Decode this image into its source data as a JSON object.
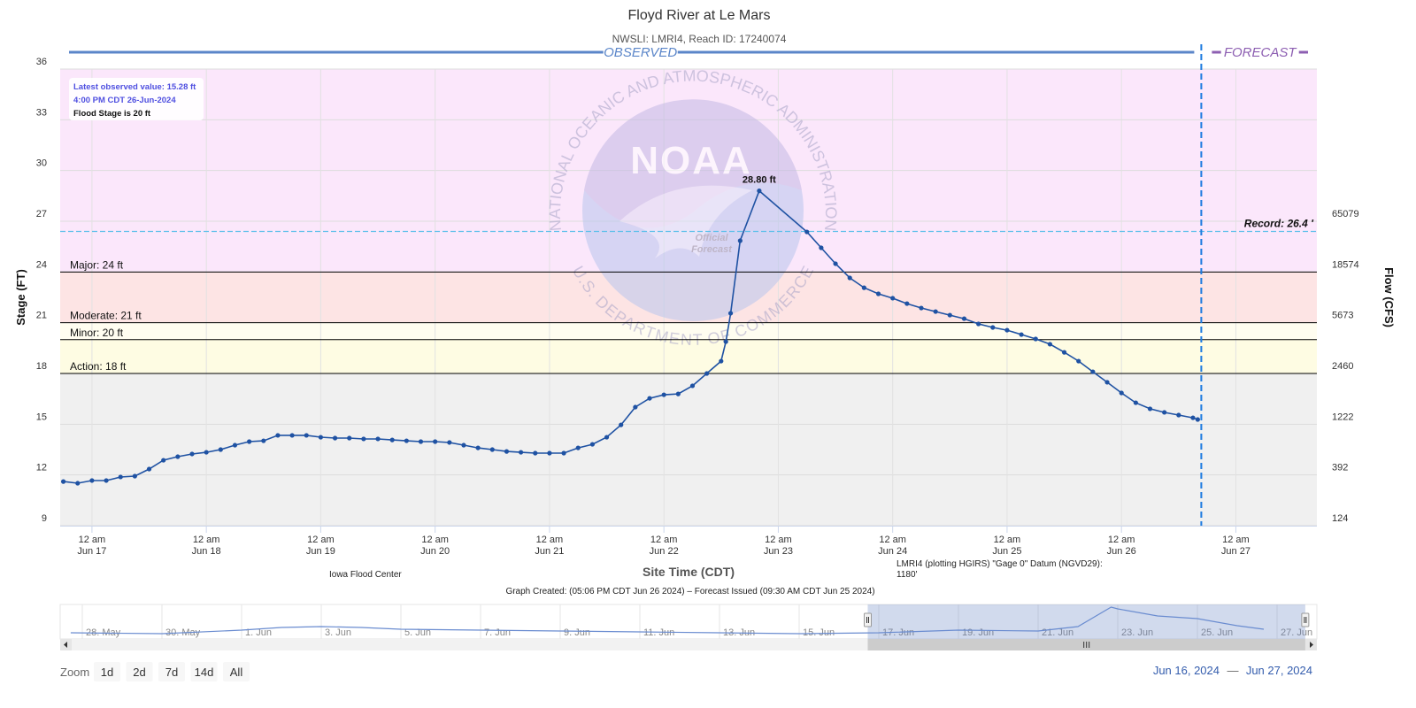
{
  "chart_data": {
    "type": "line",
    "title": "Floyd River at Le Mars",
    "subtitle": "NWSLI: LMRI4, Reach ID: 17240074",
    "section_labels": {
      "observed": "OBSERVED",
      "forecast": "FORECAST"
    },
    "x_label": "Site Time (CDT)",
    "y_label": "Stage (FT)",
    "y2_label": "Flow (CFS)",
    "grid": true,
    "markers": true,
    "xlim": [
      "2024-06-16T17:20",
      "2024-06-27T17:00"
    ],
    "xticks": [
      {
        "value": "2024-06-17T00:00",
        "label": [
          "12 am",
          "Jun 17"
        ]
      },
      {
        "value": "2024-06-18T00:00",
        "label": [
          "12 am",
          "Jun 18"
        ]
      },
      {
        "value": "2024-06-19T00:00",
        "label": [
          "12 am",
          "Jun 19"
        ]
      },
      {
        "value": "2024-06-20T00:00",
        "label": [
          "12 am",
          "Jun 20"
        ]
      },
      {
        "value": "2024-06-21T00:00",
        "label": [
          "12 am",
          "Jun 21"
        ]
      },
      {
        "value": "2024-06-22T00:00",
        "label": [
          "12 am",
          "Jun 22"
        ]
      },
      {
        "value": "2024-06-23T00:00",
        "label": [
          "12 am",
          "Jun 23"
        ]
      },
      {
        "value": "2024-06-24T00:00",
        "label": [
          "12 am",
          "Jun 24"
        ]
      },
      {
        "value": "2024-06-25T00:00",
        "label": [
          "12 am",
          "Jun 25"
        ]
      },
      {
        "value": "2024-06-26T00:00",
        "label": [
          "12 am",
          "Jun 26"
        ]
      },
      {
        "value": "2024-06-27T00:00",
        "label": [
          "12 am",
          "Jun 27"
        ]
      }
    ],
    "ylim": [
      9,
      36
    ],
    "yticks": [
      9,
      12,
      15,
      18,
      21,
      24,
      27,
      30,
      33,
      36
    ],
    "rating": [
      {
        "stage": 9,
        "flow": 124
      },
      {
        "stage": 12,
        "flow": 392
      },
      {
        "stage": 15,
        "flow": 1222
      },
      {
        "stage": 18,
        "flow": 2460
      },
      {
        "stage": 21,
        "flow": 5673
      },
      {
        "stage": 24,
        "flow": 18574
      },
      {
        "stage": 27,
        "flow": 65079
      }
    ],
    "x": [
      "2024-06-16T18:00",
      "2024-06-16T21:00",
      "2024-06-17T00:00",
      "2024-06-17T03:00",
      "2024-06-17T06:00",
      "2024-06-17T09:00",
      "2024-06-17T12:00",
      "2024-06-17T15:00",
      "2024-06-17T18:00",
      "2024-06-17T21:00",
      "2024-06-18T00:00",
      "2024-06-18T03:00",
      "2024-06-18T06:00",
      "2024-06-18T09:00",
      "2024-06-18T12:00",
      "2024-06-18T15:00",
      "2024-06-18T18:00",
      "2024-06-18T21:00",
      "2024-06-19T00:00",
      "2024-06-19T03:00",
      "2024-06-19T06:00",
      "2024-06-19T09:00",
      "2024-06-19T12:00",
      "2024-06-19T15:00",
      "2024-06-19T18:00",
      "2024-06-19T21:00",
      "2024-06-20T00:00",
      "2024-06-20T03:00",
      "2024-06-20T06:00",
      "2024-06-20T09:00",
      "2024-06-20T12:00",
      "2024-06-20T15:00",
      "2024-06-20T18:00",
      "2024-06-20T21:00",
      "2024-06-21T00:00",
      "2024-06-21T03:00",
      "2024-06-21T06:00",
      "2024-06-21T09:00",
      "2024-06-21T12:00",
      "2024-06-21T15:00",
      "2024-06-21T18:00",
      "2024-06-21T21:00",
      "2024-06-22T00:00",
      "2024-06-22T03:00",
      "2024-06-22T06:00",
      "2024-06-22T09:00",
      "2024-06-22T12:00",
      "2024-06-22T13:00",
      "2024-06-22T14:00",
      "2024-06-22T16:00",
      "2024-06-22T20:00",
      "2024-06-23T06:00",
      "2024-06-23T09:00",
      "2024-06-23T12:00",
      "2024-06-23T15:00",
      "2024-06-23T18:00",
      "2024-06-23T21:00",
      "2024-06-24T00:00",
      "2024-06-24T03:00",
      "2024-06-24T06:00",
      "2024-06-24T09:00",
      "2024-06-24T12:00",
      "2024-06-24T15:00",
      "2024-06-24T18:00",
      "2024-06-24T21:00",
      "2024-06-25T00:00",
      "2024-06-25T03:00",
      "2024-06-25T06:00",
      "2024-06-25T09:00",
      "2024-06-25T12:00",
      "2024-06-25T15:00",
      "2024-06-25T18:00",
      "2024-06-25T21:00",
      "2024-06-26T00:00",
      "2024-06-26T03:00",
      "2024-06-26T06:00",
      "2024-06-26T09:00",
      "2024-06-26T12:00",
      "2024-06-26T15:00",
      "2024-06-26T16:00"
    ],
    "series": [
      {
        "color": "#1f52a3",
        "values": [
          11.61,
          11.51,
          11.67,
          11.67,
          11.88,
          11.93,
          12.35,
          12.87,
          13.08,
          13.24,
          13.34,
          13.5,
          13.76,
          13.97,
          14.02,
          14.34,
          14.34,
          14.34,
          14.23,
          14.18,
          14.18,
          14.13,
          14.13,
          14.07,
          14.02,
          13.97,
          13.97,
          13.92,
          13.76,
          13.6,
          13.5,
          13.39,
          13.34,
          13.29,
          13.29,
          13.29,
          13.6,
          13.81,
          14.23,
          14.96,
          16.01,
          16.53,
          16.74,
          16.79,
          17.27,
          18.0,
          18.73,
          19.88,
          21.56,
          25.85,
          28.8,
          26.37,
          25.43,
          24.49,
          23.65,
          23.07,
          22.71,
          22.45,
          22.13,
          21.87,
          21.66,
          21.45,
          21.24,
          20.93,
          20.72,
          20.56,
          20.3,
          20.04,
          19.73,
          19.25,
          18.73,
          18.1,
          17.48,
          16.85,
          16.27,
          15.91,
          15.7,
          15.54,
          15.38,
          15.28
        ]
      }
    ],
    "annotations": [
      {
        "text": "28.80 ft",
        "x": "2024-06-22T20:00",
        "y": 28.8
      }
    ],
    "base_color": "#f0f0f0",
    "thresholds": [
      {
        "label": "Major: 24 ft",
        "value": 24,
        "color": "#fbe7fb"
      },
      {
        "label": "Moderate: 21 ft",
        "value": 21,
        "color": "#fde4e4"
      },
      {
        "label": "Minor: 20 ft",
        "value": 20,
        "color": "#fffdf0"
      },
      {
        "label": "Action: 18 ft",
        "value": 18,
        "color": "#fefce3"
      }
    ],
    "record": {
      "label": "Record: 26.4 '",
      "value": 26.4,
      "color": "#5bbfea"
    },
    "forecast_start": "2024-06-26T16:45",
    "info": [
      "Latest observed value: 15.28 ft",
      "4:00 PM CDT 26-Jun-2024",
      "Flood Stage is 20 ft"
    ],
    "watermark": {
      "logo": "NOAA",
      "ring_top": "NATIONAL OCEANIC AND ATMOSPHERIC ADMINISTRATION",
      "ring_bottom": "U.S. DEPARTMENT OF COMMERCE",
      "stamp": [
        "Official",
        "Forecast"
      ]
    },
    "credits": {
      "source": "Iowa Flood Center",
      "datum": [
        "LMRI4 (plotting HGIRS) \"Gage 0\" Datum (NGVD29):",
        "1180'"
      ],
      "created": "Graph Created: (05:06 PM CDT Jun 26 2024) – Forecast Issued (09:30 AM CDT Jun 25 2024)"
    },
    "navigator": {
      "xlim": [
        "2024-05-27T10:40",
        "2024-06-28T00:00"
      ],
      "ylim": [
        9,
        30
      ],
      "xticks": [
        {
          "value": "2024-05-28T00:00",
          "label": "28. May"
        },
        {
          "value": "2024-05-30T00:00",
          "label": "30. May"
        },
        {
          "value": "2024-06-01T00:00",
          "label": "1. Jun"
        },
        {
          "value": "2024-06-03T00:00",
          "label": "3. Jun"
        },
        {
          "value": "2024-06-05T00:00",
          "label": "5. Jun"
        },
        {
          "value": "2024-06-07T00:00",
          "label": "7. Jun"
        },
        {
          "value": "2024-06-09T00:00",
          "label": "9. Jun"
        },
        {
          "value": "2024-06-11T00:00",
          "label": "11. Jun"
        },
        {
          "value": "2024-06-13T00:00",
          "label": "13. Jun"
        },
        {
          "value": "2024-06-15T00:00",
          "label": "15. Jun"
        },
        {
          "value": "2024-06-17T00:00",
          "label": "17. Jun"
        },
        {
          "value": "2024-06-19T00:00",
          "label": "19. Jun"
        },
        {
          "value": "2024-06-21T00:00",
          "label": "21. Jun"
        },
        {
          "value": "2024-06-23T00:00",
          "label": "23. Jun"
        },
        {
          "value": "2024-06-25T00:00",
          "label": "25. Jun"
        },
        {
          "value": "2024-06-27T00:00",
          "label": "27. Jun"
        }
      ],
      "x": [
        "2024-05-27T17:00",
        "2024-05-30T00:00",
        "2024-06-01T00:00",
        "2024-06-02T00:00",
        "2024-06-03T00:00",
        "2024-06-04T00:00",
        "2024-06-05T00:00",
        "2024-06-07T00:00",
        "2024-06-09T00:00",
        "2024-06-11T00:00",
        "2024-06-13T00:00",
        "2024-06-15T00:00",
        "2024-06-17T00:00",
        "2024-06-19T00:00",
        "2024-06-21T00:00",
        "2024-06-22T00:00",
        "2024-06-22T20:00",
        "2024-06-23T00:00",
        "2024-06-24T00:00",
        "2024-06-25T00:00",
        "2024-06-26T00:00",
        "2024-06-26T16:00"
      ],
      "color": "#6a8cd0",
      "values": [
        11.84,
        11.27,
        13.54,
        15.24,
        15.81,
        15.24,
        14.11,
        13.54,
        12.97,
        12.41,
        11.84,
        11.27,
        11.84,
        13.54,
        12.97,
        15.81,
        28.3,
        27.16,
        22.62,
        20.92,
        16.38,
        14.11
      ]
    },
    "zoom": {
      "label": "Zoom",
      "buttons": [
        "1d",
        "2d",
        "7d",
        "14d",
        "All"
      ]
    },
    "range": {
      "from": "Jun 16, 2024",
      "separator": "—",
      "to": "Jun 27, 2024"
    }
  }
}
